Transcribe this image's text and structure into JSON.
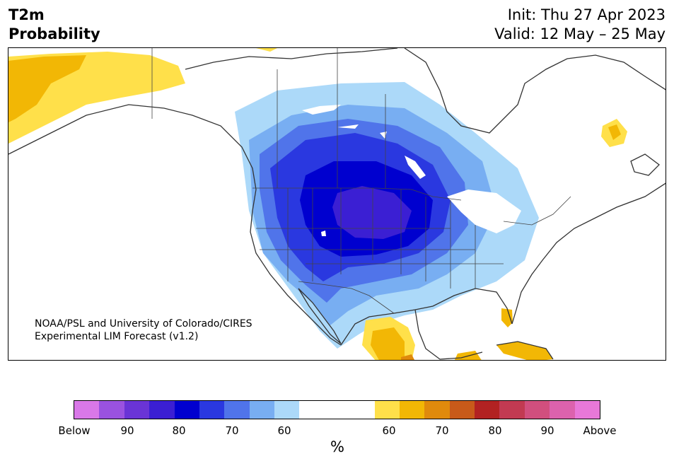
{
  "header": {
    "title_line1": "T2m",
    "title_line2": "Probability",
    "init": "Init: Thu 27 Apr 2023",
    "valid": "Valid: 12 May – 25 May"
  },
  "credit": {
    "line1": "NOAA/PSL and University of Colorado/CIRES",
    "line2": "Experimental LIM Forecast (v1.2)"
  },
  "colorbar": {
    "unit": "%",
    "labels": [
      "Below",
      "90",
      "80",
      "70",
      "60",
      "60",
      "70",
      "80",
      "90",
      "Above"
    ],
    "colors": [
      "#d978e8",
      "#9a52e0",
      "#6a34d6",
      "#3b1fd3",
      "#0000cf",
      "#2a38e0",
      "#5074ea",
      "#78aef2",
      "#acd9f9",
      "#ffffff",
      "#ffe04a",
      "#f2b705",
      "#e08a0c",
      "#c85a1a",
      "#b22222",
      "#c23a52",
      "#d14f7e",
      "#dc62ad",
      "#e878d8"
    ]
  },
  "legend_map": {
    "probability_colors": {
      "below_90_plus": "#6a34d6",
      "below_80": "#3b1fd3",
      "below_70": "#0000cf",
      "below_65": "#2a38e0",
      "below_60": "#5074ea",
      "below_55": "#78aef2",
      "below_50": "#acd9f9",
      "neutral": "#ffffff",
      "above_50": "#ffe04a",
      "above_60": "#f2b705",
      "above_70": "#e08a0c"
    }
  }
}
